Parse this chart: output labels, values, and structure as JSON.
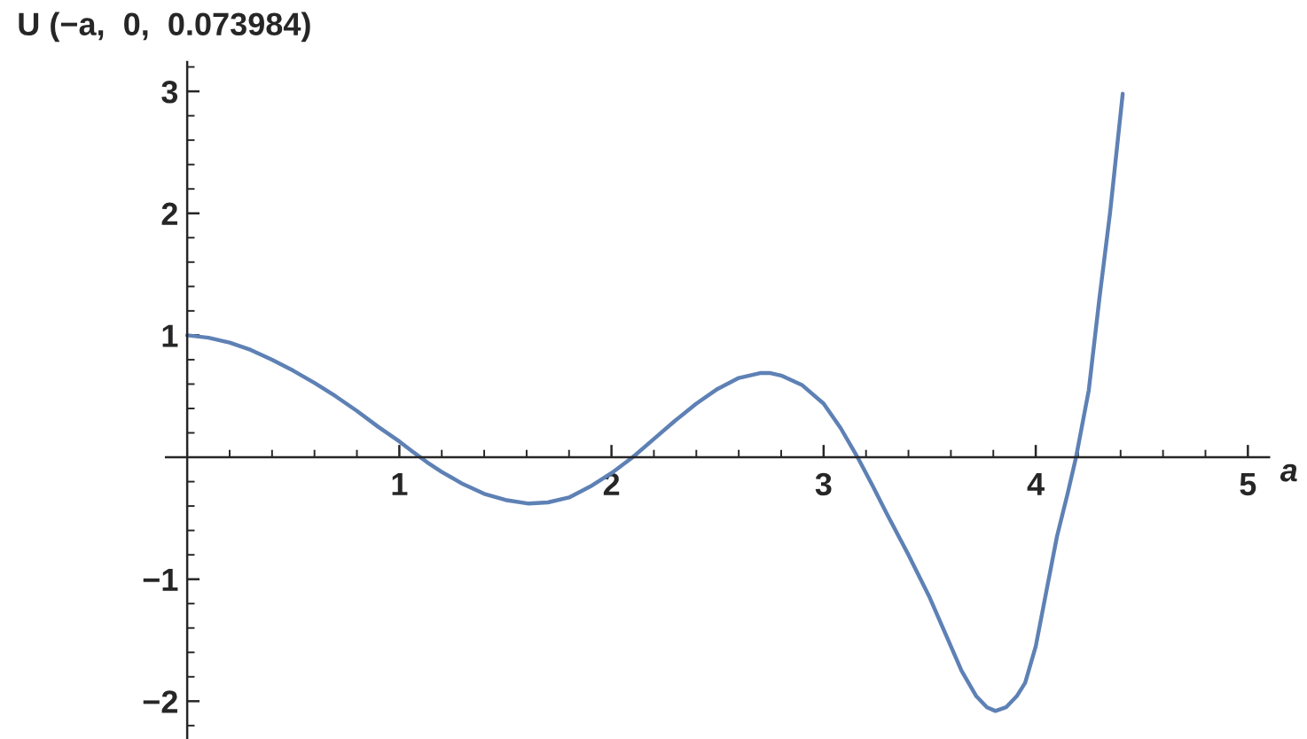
{
  "chart_data": {
    "type": "line",
    "xlabel": "a",
    "ylabel": "U (−a,  0,  0.073984)",
    "x": [
      0,
      0.1,
      0.2,
      0.3,
      0.4,
      0.5,
      0.6,
      0.7,
      0.8,
      0.9,
      1.0,
      1.06,
      1.13,
      1.2,
      1.3,
      1.4,
      1.5,
      1.61,
      1.7,
      1.8,
      1.9,
      2.0,
      2.1,
      2.2,
      2.3,
      2.4,
      2.5,
      2.6,
      2.7,
      2.75,
      2.8,
      2.9,
      3.0,
      3.08,
      3.16,
      3.23,
      3.3,
      3.4,
      3.5,
      3.58,
      3.65,
      3.72,
      3.77,
      3.81,
      3.86,
      3.91,
      3.95,
      4.0,
      4.05,
      4.1,
      4.15,
      4.19,
      4.25,
      4.3,
      4.35,
      4.41
    ],
    "series": [
      {
        "color": "#5e81b5",
        "values": [
          1.0,
          0.98,
          0.94,
          0.88,
          0.8,
          0.71,
          0.61,
          0.5,
          0.38,
          0.25,
          0.13,
          0.05,
          -0.04,
          -0.12,
          -0.22,
          -0.3,
          -0.35,
          -0.38,
          -0.37,
          -0.33,
          -0.24,
          -0.13,
          0,
          0.15,
          0.3,
          0.44,
          0.56,
          0.65,
          0.69,
          0.69,
          0.67,
          0.59,
          0.44,
          0.24,
          0,
          -0.23,
          -0.47,
          -0.8,
          -1.15,
          -1.47,
          -1.75,
          -1.96,
          -2.05,
          -2.08,
          -2.05,
          -1.96,
          -1.85,
          -1.55,
          -1.1,
          -0.65,
          -0.3,
          0,
          0.55,
          1.3,
          2.0,
          2.98
        ]
      }
    ],
    "xlim": [
      -0.1,
      5.1
    ],
    "ylim": [
      -2.31,
      3.24
    ],
    "xticks": [
      1,
      2,
      3,
      4,
      5
    ],
    "yticks": [
      -2,
      -1,
      1,
      2,
      3
    ],
    "grid": false,
    "marker": "none",
    "line_style": "solid"
  }
}
